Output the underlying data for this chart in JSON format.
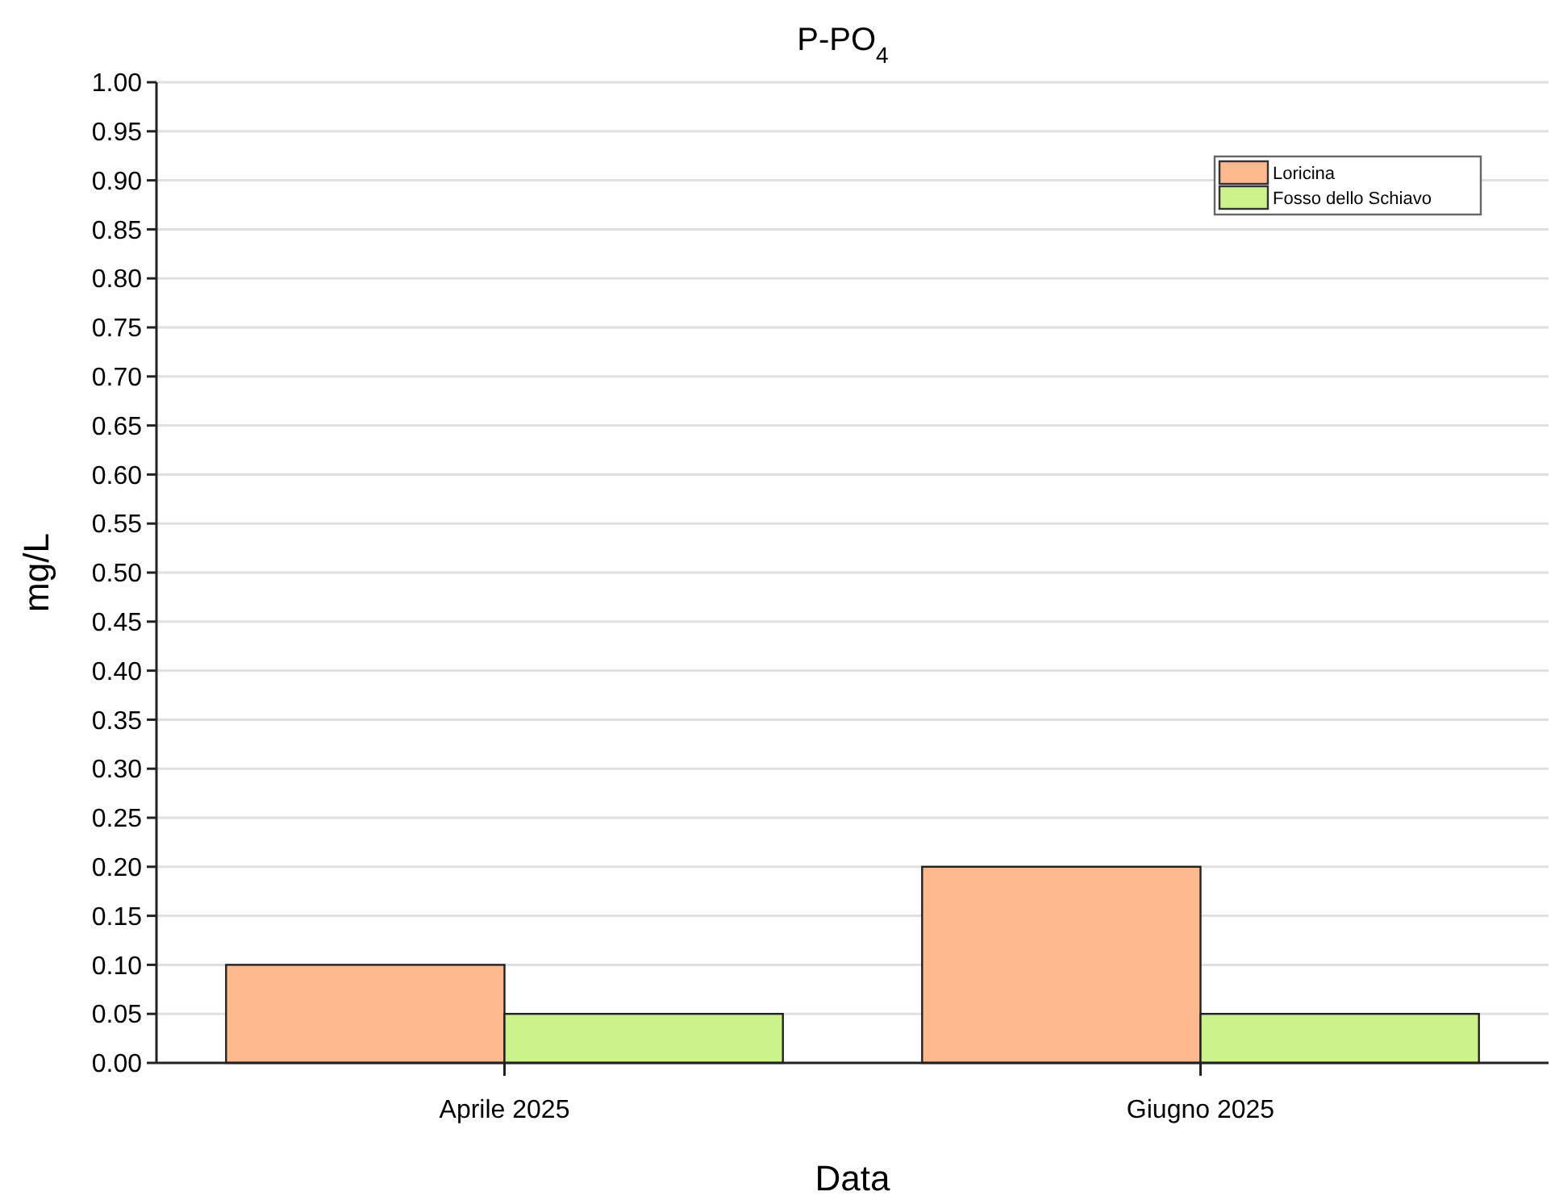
{
  "chart_data": {
    "type": "bar",
    "title": "P-PO$_{4}$",
    "xlabel": "Data",
    "ylabel": "mg/L",
    "categories": [
      "Aprile 2025",
      "Giugno 2025"
    ],
    "series": [
      {
        "name": "Loricina",
        "color": "#ffb98f",
        "values": [
          0.1,
          0.2
        ]
      },
      {
        "name": "Fosso dello Schiavo",
        "color": "#ccf28c",
        "values": [
          0.05,
          0.05
        ]
      }
    ],
    "ylim": [
      0,
      1
    ],
    "yticks": [
      {
        "value": 0,
        "label": "0.00"
      },
      {
        "value": 0.05,
        "label": "0.05"
      },
      {
        "value": 0.1,
        "label": "0.10"
      },
      {
        "value": 0.15,
        "label": "0.15"
      },
      {
        "value": 0.2,
        "label": "0.20"
      },
      {
        "value": 0.25,
        "label": "0.25"
      },
      {
        "value": 0.3,
        "label": "0.30"
      },
      {
        "value": 0.35,
        "label": "0.35"
      },
      {
        "value": 0.4,
        "label": "0.40"
      },
      {
        "value": 0.45,
        "label": "0.45"
      },
      {
        "value": 0.5,
        "label": "0.50"
      },
      {
        "value": 0.55,
        "label": "0.55"
      },
      {
        "value": 0.6,
        "label": "0.60"
      },
      {
        "value": 0.65,
        "label": "0.65"
      },
      {
        "value": 0.7,
        "label": "0.70"
      },
      {
        "value": 0.75,
        "label": "0.75"
      },
      {
        "value": 0.8,
        "label": "0.80"
      },
      {
        "value": 0.85,
        "label": "0.85"
      },
      {
        "value": 0.9,
        "label": "0.90"
      },
      {
        "value": 0.95,
        "label": "0.95"
      },
      {
        "value": 1,
        "label": "1.00"
      }
    ],
    "grid": "y",
    "legend": "top right"
  }
}
